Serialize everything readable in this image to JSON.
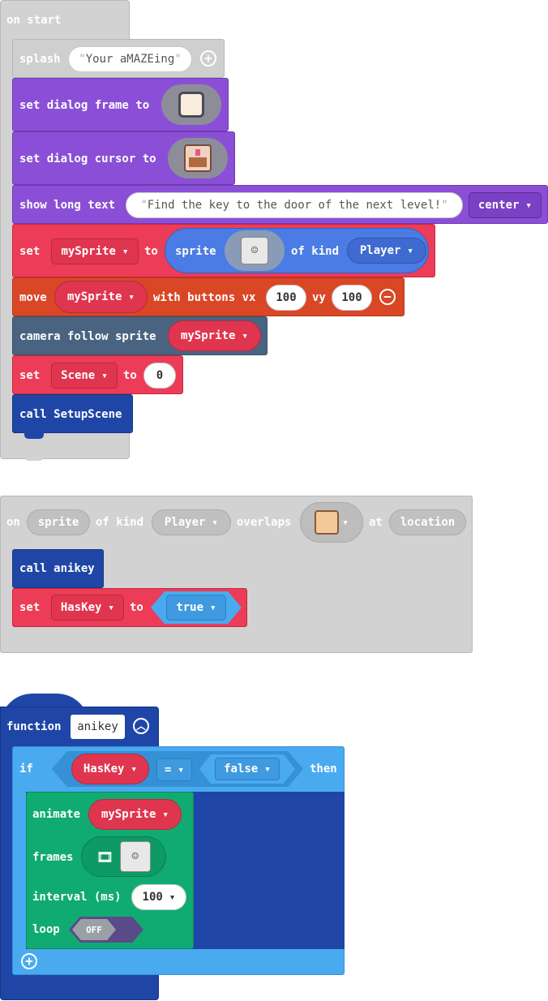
{
  "on_start": {
    "hat_label": "on start",
    "splash": {
      "label": "splash",
      "text": "Your aMAZEing"
    },
    "dialog_frame": {
      "label": "set dialog frame to"
    },
    "dialog_cursor": {
      "label": "set dialog cursor to"
    },
    "long_text": {
      "label": "show long text",
      "text": "Find the key to the door of the next level!",
      "position": "center"
    },
    "set_sprite": {
      "set": "set",
      "var": "mySprite",
      "to": "to",
      "sprite": "sprite",
      "of_kind": "of kind",
      "kind": "Player"
    },
    "move": {
      "move": "move",
      "var": "mySprite",
      "with_buttons": "with buttons vx",
      "vx": "100",
      "vy_label": "vy",
      "vy": "100"
    },
    "camera": {
      "label": "camera follow sprite",
      "var": "mySprite"
    },
    "set_scene": {
      "set": "set",
      "var": "Scene",
      "to": "to",
      "value": "0"
    },
    "call": {
      "label": "call SetupScene"
    }
  },
  "overlap": {
    "on": "on",
    "sprite": "sprite",
    "of_kind": "of kind",
    "kind": "Player",
    "overlaps": "overlaps",
    "at": "at",
    "location": "location",
    "call": "call anikey",
    "set": "set",
    "var": "HasKey",
    "to": "to",
    "value": "true"
  },
  "function": {
    "label": "function",
    "name": "anikey",
    "if": "if",
    "var": "HasKey",
    "op": "=",
    "value": "false",
    "then": "then",
    "animate": "animate",
    "anim_var": "mySprite",
    "frames": "frames",
    "interval": "interval (ms)",
    "interval_value": "100",
    "loop": "loop",
    "loop_value": "OFF"
  },
  "colors": {
    "events": "#d2d2d2",
    "scene": "#8a4fd6",
    "sprites": "#ec3c57",
    "controller": "#d94726",
    "functions": "#1f46a7",
    "logic": "#4aaaf0",
    "animation": "#10ab72"
  },
  "icons": [
    "plus-icon",
    "minus-icon",
    "collapse-icon",
    "dialog-frame-image",
    "chest-image",
    "player-sprite-image",
    "filmstrip-icon"
  ]
}
